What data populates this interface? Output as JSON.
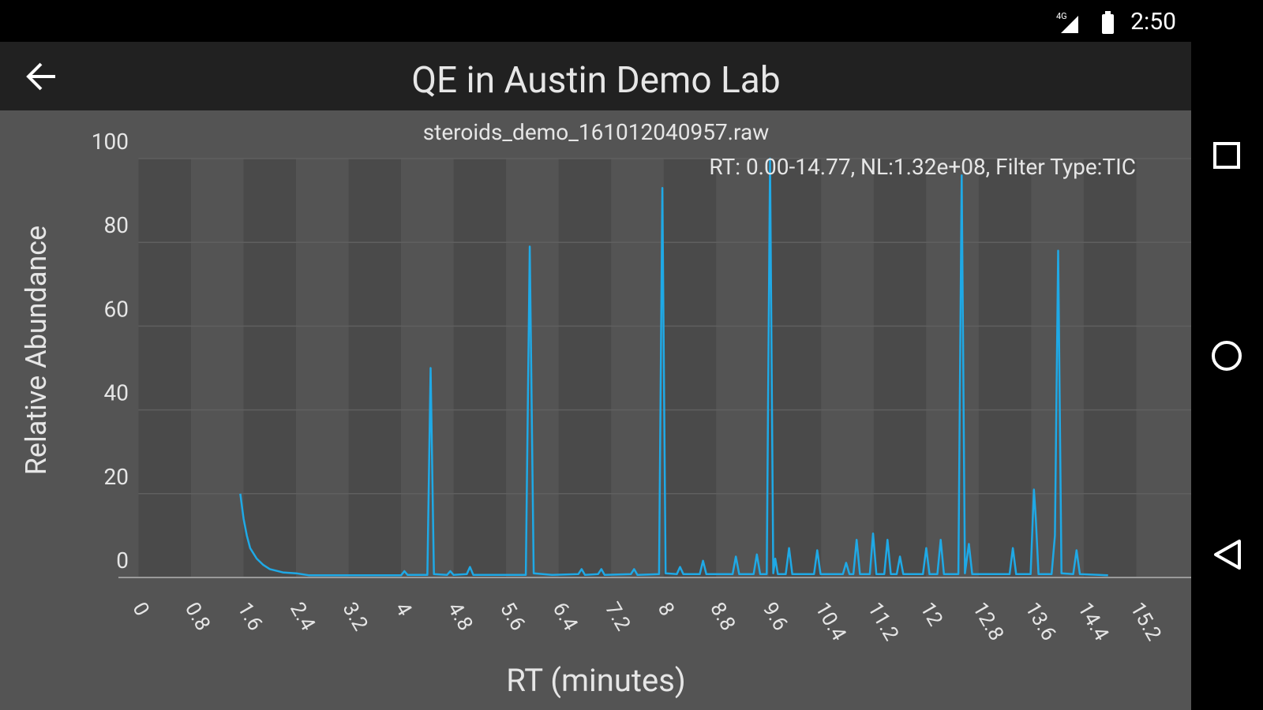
{
  "status_bar": {
    "time": "2:50"
  },
  "toolbar": {
    "title": "QE in Austin Demo Lab"
  },
  "chart_data": {
    "type": "line",
    "title": "steroids_demo_161012040957.raw",
    "subtitle": "RT: 0.00-14.77, NL:1.32e+08, Filter Type:TIC",
    "x_label": "RT (minutes)",
    "y_label": "Relative Abundance",
    "color": "#1fa9e6",
    "grid": true,
    "xlim": [
      0,
      16
    ],
    "ylim": [
      0,
      100
    ],
    "xticks": [
      0,
      0.8,
      1.6,
      2.4,
      3.2,
      4,
      4.8,
      5.6,
      6.4,
      7.2,
      8,
      8.8,
      9.6,
      10.4,
      11.2,
      12,
      12.8,
      13.6,
      14.4,
      15.2
    ],
    "yticks": [
      0,
      20,
      40,
      60,
      80,
      100
    ],
    "x": [
      1.55,
      1.6,
      1.65,
      1.7,
      1.8,
      1.9,
      2.0,
      2.2,
      2.4,
      2.6,
      3.5,
      4.0,
      4.05,
      4.1,
      4.4,
      4.45,
      4.5,
      4.7,
      4.75,
      4.8,
      5.0,
      5.05,
      5.1,
      5.9,
      5.96,
      6.02,
      6.3,
      6.7,
      6.75,
      6.8,
      7.0,
      7.05,
      7.1,
      7.5,
      7.55,
      7.6,
      7.93,
      7.98,
      8.03,
      8.2,
      8.25,
      8.3,
      8.55,
      8.6,
      8.65,
      9.05,
      9.1,
      9.15,
      9.37,
      9.42,
      9.47,
      9.57,
      9.62,
      9.67,
      9.7,
      9.74,
      9.86,
      9.91,
      9.96,
      10.29,
      10.34,
      10.39,
      10.73,
      10.78,
      10.83,
      10.89,
      10.94,
      10.99,
      11.14,
      11.19,
      11.24,
      11.36,
      11.41,
      11.46,
      11.55,
      11.6,
      11.65,
      11.95,
      12.0,
      12.05,
      12.17,
      12.22,
      12.27,
      12.49,
      12.54,
      12.59,
      12.65,
      12.7,
      13.27,
      13.32,
      13.37,
      13.59,
      13.64,
      13.67,
      13.71,
      13.91,
      13.96,
      14.01,
      14.06,
      14.24,
      14.29,
      14.34,
      14.77
    ],
    "values": [
      20,
      14,
      10,
      7,
      4.5,
      3,
      2,
      1.2,
      1,
      0.5,
      0.5,
      0.5,
      1.5,
      0.6,
      0.6,
      50,
      0.8,
      0.6,
      1.5,
      0.6,
      0.8,
      2.5,
      0.6,
      0.6,
      79,
      1,
      0.6,
      0.8,
      2,
      0.6,
      0.8,
      2,
      0.6,
      0.8,
      2,
      0.6,
      0.8,
      93,
      1,
      0.8,
      2.5,
      0.8,
      0.8,
      4,
      0.8,
      0.8,
      5,
      0.8,
      0.8,
      5.5,
      0.8,
      0.8,
      100,
      1,
      4.5,
      0.8,
      0.8,
      7,
      0.8,
      0.8,
      6.5,
      0.8,
      0.8,
      3.5,
      0.8,
      0.8,
      9,
      0.8,
      0.8,
      10.5,
      0.8,
      0.8,
      9,
      0.8,
      0.8,
      5,
      0.8,
      0.8,
      7,
      0.8,
      0.8,
      9,
      0.8,
      0.8,
      96,
      1,
      8,
      0.8,
      0.8,
      7,
      0.8,
      0.8,
      21,
      14,
      0.8,
      0.8,
      10,
      78,
      1,
      0.8,
      6.5,
      0.8,
      0.5
    ]
  }
}
